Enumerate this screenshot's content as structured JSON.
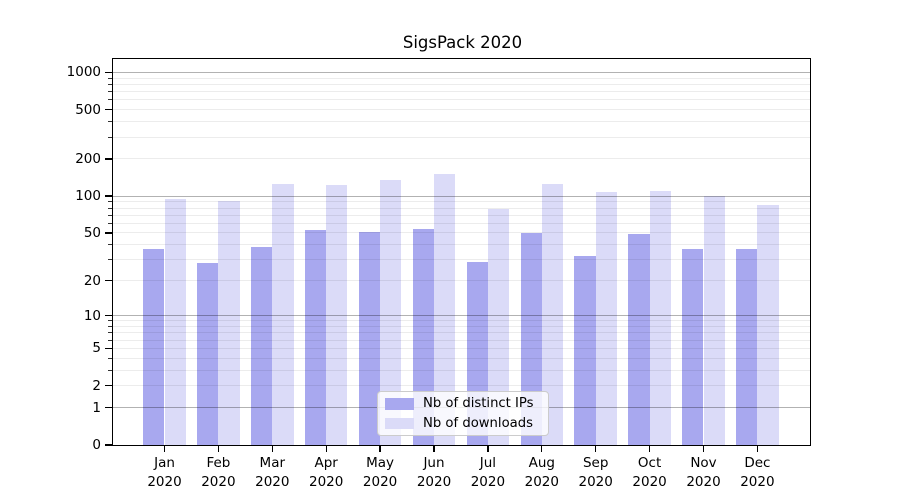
{
  "figure": {
    "title": "SigsPack 2020",
    "background": "#ffffff"
  },
  "chart_data": {
    "type": "bar",
    "title": "SigsPack 2020",
    "categories": [
      "Jan 2020",
      "Feb 2020",
      "Mar 2020",
      "Apr 2020",
      "May 2020",
      "Jun 2020",
      "Jul 2020",
      "Aug 2020",
      "Sep 2020",
      "Oct 2020",
      "Nov 2020",
      "Dec 2020"
    ],
    "x_tick_top": [
      "Jan",
      "Feb",
      "Mar",
      "Apr",
      "May",
      "Jun",
      "Jul",
      "Aug",
      "Sep",
      "Oct",
      "Nov",
      "Dec"
    ],
    "x_tick_bottom": "2020",
    "series": [
      {
        "name": "Nb of distinct IPs",
        "color": "#a8a8ef",
        "values": [
          37,
          28,
          38,
          53,
          51,
          54,
          29,
          50,
          32,
          49,
          37,
          37
        ]
      },
      {
        "name": "Nb of downloads",
        "color": "#dbdbf8",
        "values": [
          94,
          91,
          125,
          122,
          134,
          152,
          79,
          126,
          107,
          110,
          100,
          84
        ]
      }
    ],
    "yscale": "log1p",
    "ylim": [
      0,
      1300
    ],
    "y_axis_ticks": [
      0,
      1,
      2,
      5,
      10,
      20,
      50,
      100,
      200,
      500,
      1000
    ],
    "y_major_gridlines": [
      1,
      10,
      100,
      1000
    ],
    "y_minor_gridlines": [
      2,
      3,
      4,
      5,
      6,
      7,
      8,
      9,
      20,
      30,
      40,
      50,
      60,
      70,
      80,
      90,
      200,
      300,
      400,
      500,
      600,
      700,
      800,
      900
    ],
    "grid": true,
    "legend_position": "lower center",
    "xlabel": "",
    "ylabel": ""
  },
  "legend": {
    "items": [
      {
        "label": "Nb of distinct IPs",
        "color": "#a8a8ef"
      },
      {
        "label": "Nb of downloads",
        "color": "#dbdbf8"
      }
    ]
  },
  "colors": {
    "series_ips": "#a8a8ef",
    "series_downloads": "#dbdbf8",
    "axis": "#000000",
    "grid_major": "#b3b3b3",
    "grid_minor": "#ececec",
    "legend_border": "#cccccc"
  }
}
